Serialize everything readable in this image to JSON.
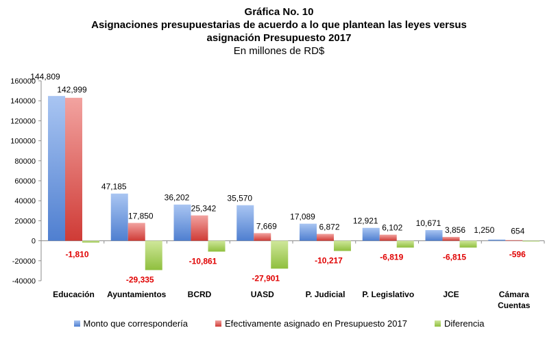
{
  "chart_data": {
    "type": "bar",
    "title_lines": [
      "Gráfica No. 10",
      "Asignaciones presupuestarias de acuerdo a lo que plantean las leyes versus",
      "asignación Presupuesto 2017"
    ],
    "subtitle": "En millones de RD$",
    "categories": [
      [
        "Educación"
      ],
      [
        "Ayuntamientos"
      ],
      [
        "BCRD"
      ],
      [
        "UASD"
      ],
      [
        "P. Judicial"
      ],
      [
        "P. Legislativo"
      ],
      [
        "JCE"
      ],
      [
        "Cámara",
        "Cuentas"
      ]
    ],
    "series": [
      {
        "name": "Monto que correspondería",
        "color": "#7da7e8",
        "values": [
          144809,
          47185,
          36202,
          35570,
          17089,
          12921,
          10671,
          1250
        ],
        "labels": [
          "144,809",
          "47,185",
          "36,202",
          "35,570",
          "17,089",
          "12,921",
          "10,671",
          "1,250"
        ]
      },
      {
        "name": "Efectivamente asignado en Presupuesto 2017",
        "color": "#e8706b",
        "values": [
          142999,
          17850,
          25342,
          7669,
          6872,
          6102,
          3856,
          654
        ],
        "labels": [
          "142,999",
          "17,850",
          "25,342",
          "7,669",
          "6,872",
          "6,102",
          "3,856",
          "654"
        ]
      },
      {
        "name": "Diferencia",
        "color": "#b5d86a",
        "values": [
          -1810,
          -29335,
          -10861,
          -27901,
          -10217,
          -6819,
          -6815,
          -596
        ],
        "labels": [
          "-1,810",
          "-29,335",
          "-10,861",
          "-27,901",
          "-10,217",
          "-6,819",
          "-6,815",
          "-596"
        ],
        "label_color": "#e00000"
      }
    ],
    "ylim": [
      -40000,
      160000
    ],
    "yticks": [
      -40000,
      -20000,
      0,
      20000,
      40000,
      60000,
      80000,
      100000,
      120000,
      140000,
      160000
    ],
    "grid": false,
    "legend_position": "bottom"
  }
}
